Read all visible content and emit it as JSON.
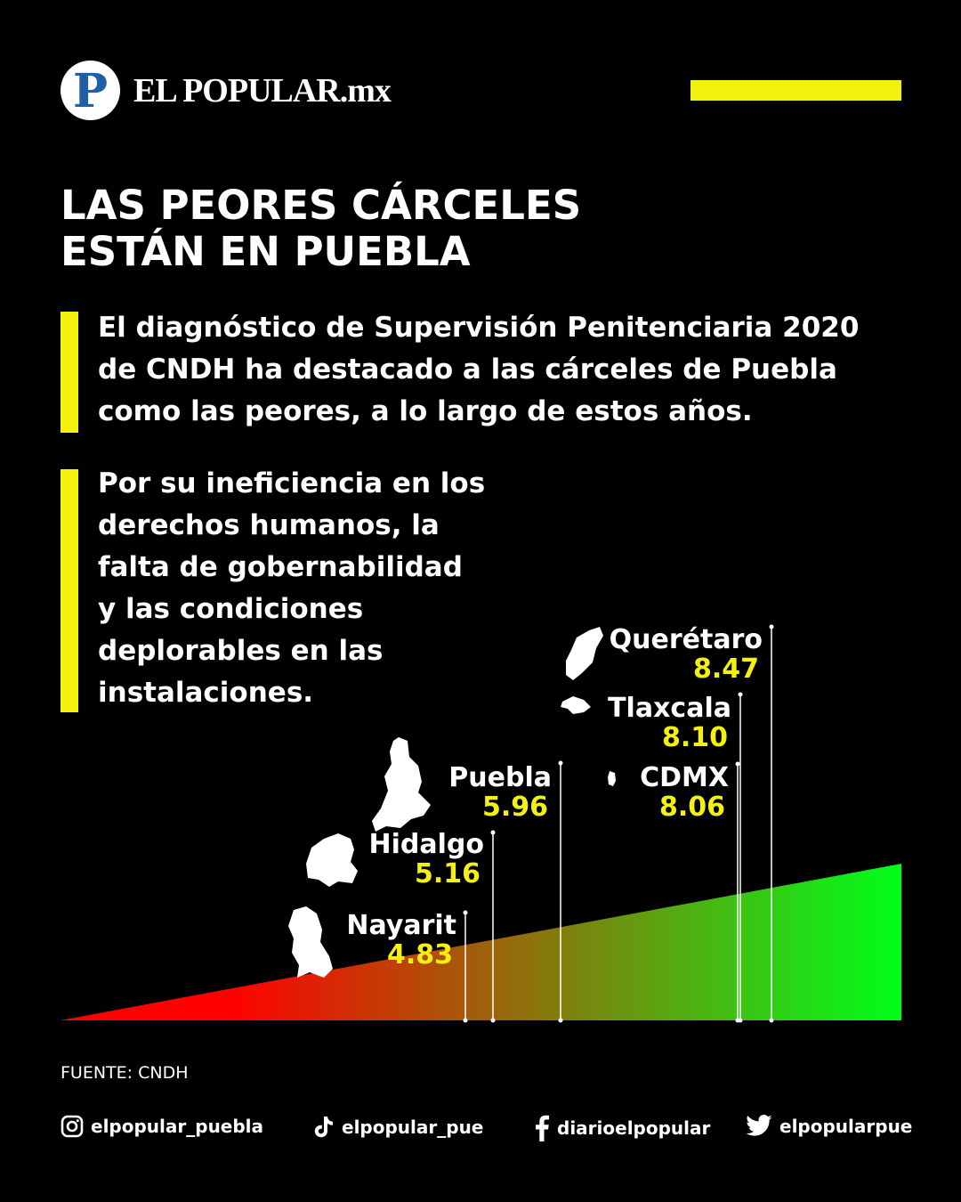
{
  "header": {
    "logo_letter": "P",
    "brand": "EL POPULAR.mx",
    "accent_color": "#f5f10f"
  },
  "title": {
    "line1": "LAS PEORES CÁRCELES",
    "line2": "ESTÁN EN PUEBLA"
  },
  "paragraph1": {
    "line1": "El diagnóstico de Supervisión Penitenciaria 2020",
    "line2": "de CNDH ha destacado a las cárceles de Puebla",
    "line3": "como las peores, a lo largo de estos años."
  },
  "paragraph2": {
    "line1": "Por su ineficiencia en los",
    "line2": "derechos humanos, la",
    "line3": "falta de gobernabilidad",
    "line4": "y las condiciones",
    "line5": "deplorables en las",
    "line6": "instalaciones."
  },
  "chart_data": {
    "type": "bar",
    "title": "",
    "categories": [
      "Nayarit",
      "Hidalgo",
      "Puebla",
      "CDMX",
      "Tlaxcala",
      "Querétaro"
    ],
    "values": [
      4.83,
      5.16,
      5.96,
      8.06,
      8.1,
      8.47
    ],
    "value_labels": [
      "4.83",
      "5.16",
      "5.96",
      "8.06",
      "8.10",
      "8.47"
    ],
    "gradient": [
      "#ff0000",
      "#00ff1a"
    ],
    "value_color": "#f5f10f"
  },
  "source": "FUENTE: CNDH",
  "social": [
    {
      "icon": "instagram-icon",
      "handle": "elpopular_puebla"
    },
    {
      "icon": "tiktok-icon",
      "handle": "elpopular_pue"
    },
    {
      "icon": "facebook-icon",
      "handle": "diarioelpopular"
    },
    {
      "icon": "twitter-icon",
      "handle": "elpopularpue"
    }
  ]
}
